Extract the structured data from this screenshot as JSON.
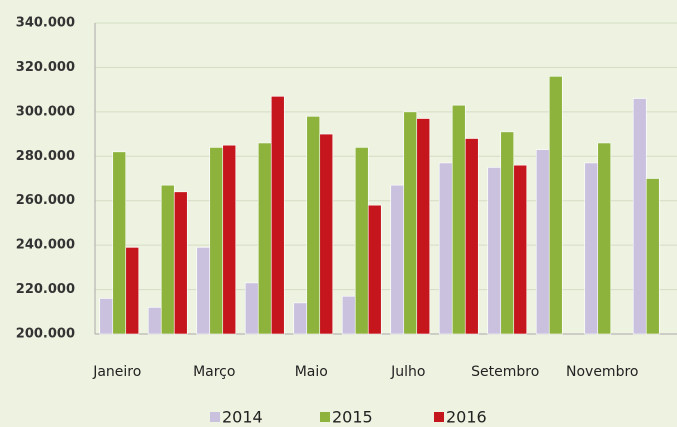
{
  "chart_data": {
    "type": "bar",
    "categories": [
      "Janeiro",
      null,
      "Março",
      null,
      "Maio",
      null,
      "Julho",
      null,
      "Setembro",
      null,
      "Novembro",
      null
    ],
    "series": [
      {
        "name": "2014",
        "color": "#c9c1de",
        "values": [
          216000,
          212000,
          239000,
          223000,
          214000,
          217000,
          267000,
          277000,
          275000,
          283000,
          277000,
          306000
        ]
      },
      {
        "name": "2015",
        "color": "#8db33c",
        "values": [
          282000,
          267000,
          284000,
          286000,
          298000,
          284000,
          300000,
          303000,
          291000,
          316000,
          286000,
          270000
        ]
      },
      {
        "name": "2016",
        "color": "#c4161c",
        "values": [
          239000,
          264000,
          285000,
          307000,
          290000,
          258000,
          297000,
          288000,
          276000,
          null,
          null,
          null
        ]
      }
    ],
    "ylim": [
      200000,
      340000
    ],
    "yticks": [
      {
        "value": 200000,
        "label": "200.000"
      },
      {
        "value": 220000,
        "label": "220.000"
      },
      {
        "value": 240000,
        "label": "240.000"
      },
      {
        "value": 260000,
        "label": "260.000"
      },
      {
        "value": 280000,
        "label": "280.000"
      },
      {
        "value": 300000,
        "label": "300.000"
      },
      {
        "value": 320000,
        "label": "320.000"
      },
      {
        "value": 340000,
        "label": "340.000"
      }
    ],
    "grid": true
  }
}
